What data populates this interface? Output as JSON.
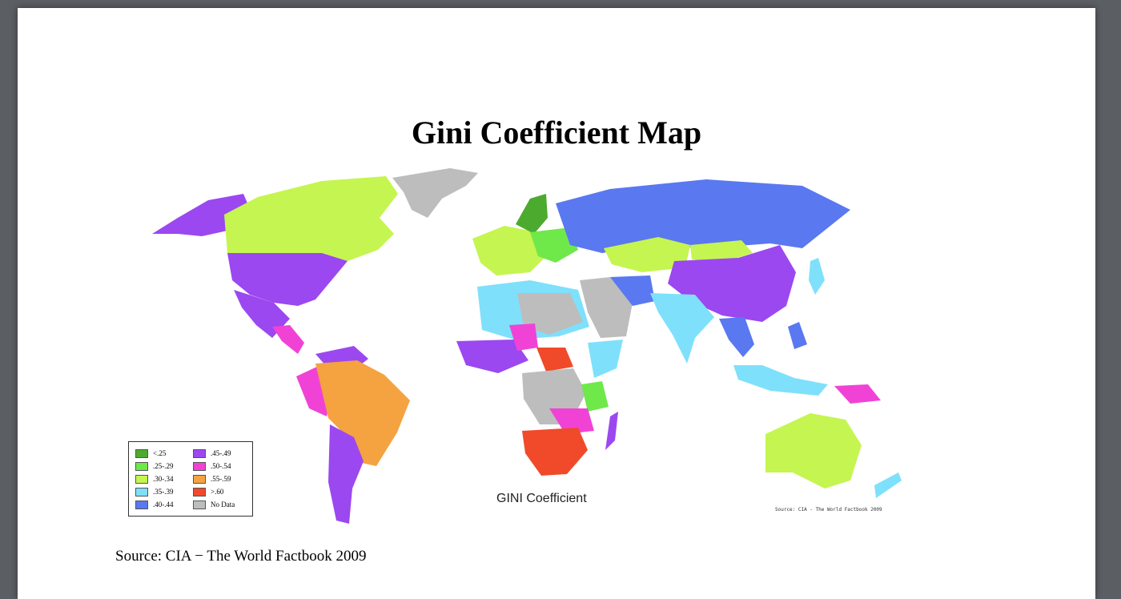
{
  "title": "Gini Coefficient Map",
  "map": {
    "caption": "GINI Coefficient",
    "source_small": "Source: CIA - The World Factbook 2009",
    "legend": [
      {
        "label": "<.25",
        "color": "#4caa2e"
      },
      {
        "label": ".25-.29",
        "color": "#6fe84a"
      },
      {
        "label": ".30-.34",
        "color": "#c5f550"
      },
      {
        "label": ".35-.39",
        "color": "#7fe0fb"
      },
      {
        "label": ".40-.44",
        "color": "#5a78f0"
      },
      {
        "label": ".45-.49",
        "color": "#9b48f0"
      },
      {
        "label": ".50-.54",
        "color": "#f043d6"
      },
      {
        "label": ".55-.59",
        "color": "#f5a240"
      },
      {
        "label": ">.60",
        "color": "#f04a2a"
      },
      {
        "label": "No Data",
        "color": "#bdbdbd"
      }
    ]
  },
  "source": "Source: CIA − The World Factbook 2009"
}
